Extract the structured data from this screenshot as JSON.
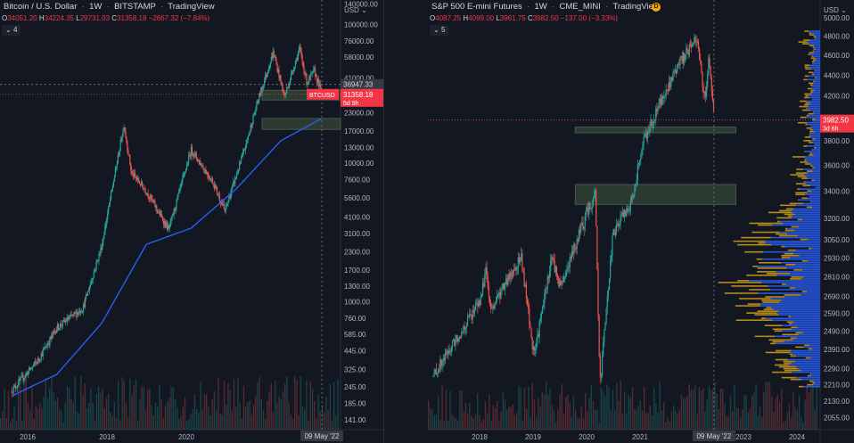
{
  "left_chart": {
    "title": "Bitcoin / U.S. Dollar",
    "interval": "1W",
    "exchange": "BITSTAMP",
    "source": "TradingView",
    "ohlc": {
      "o": "34051.20",
      "h": "34224.35",
      "l": "29731.03",
      "c": "31358.18",
      "chg": "−2667.32 (−7.84%)"
    },
    "indicator_count": "4",
    "currency": "USD",
    "price_tag": {
      "symbol": "BTCUSD",
      "price": "31358.18",
      "countdown": "5d 9h"
    },
    "crosshair_price": "36947.33",
    "crosshair_date": "09 May '22",
    "colors": {
      "up": "#26a69a",
      "down": "#ef5350",
      "ma": "#2962ff",
      "zone": "#4a5e48"
    },
    "log_scale": true
  },
  "right_chart": {
    "title": "S&P 500 E-mini Futures",
    "interval": "1W",
    "exchange": "CME_MINI",
    "source": "TradingView",
    "ohlc": {
      "o": "4087.25",
      "h": "4099.00",
      "l": "3961.75",
      "c": "3982.50",
      "chg": "−137.00 (−3.33%)"
    },
    "indicator_count": "5",
    "currency": "USD",
    "price_tag": {
      "price": "3982.50",
      "countdown": "3d 6h"
    },
    "crosshair_date": "09 May '22",
    "colors": {
      "up": "#26a69a",
      "down": "#ef5350",
      "vp_up": "#2962ff",
      "vp_down": "#d4a017",
      "zone": "#4a5e48"
    },
    "log_scale": true
  },
  "chart_data": [
    {
      "type": "candlestick",
      "title": "Bitcoin / U.S. Dollar",
      "x_ticks": [
        "2016",
        "2018",
        "2020"
      ],
      "y_ticks": [
        "140000.00",
        "100000.00",
        "76000.00",
        "58000.00",
        "41000.00",
        "23000.00",
        "17000.00",
        "13000.00",
        "10000.00",
        "7600.00",
        "5600.00",
        "4100.00",
        "3100.00",
        "2300.00",
        "1700.00",
        "1300.00",
        "1000.00",
        "760.00",
        "585.00",
        "445.00",
        "325.00",
        "245.00",
        "185.00",
        "141.00"
      ],
      "ylim": [
        120,
        140000
      ],
      "series": [
        {
          "name": "BTCUSD",
          "points": [
            [
              "2015-06",
              230
            ],
            [
              "2016-01",
              380
            ],
            [
              "2016-06",
              650
            ],
            [
              "2017-01",
              900
            ],
            [
              "2017-06",
              2500
            ],
            [
              "2017-12",
              19000
            ],
            [
              "2018-02",
              8500
            ],
            [
              "2018-06",
              6300
            ],
            [
              "2018-12",
              3300
            ],
            [
              "2019-06",
              12500
            ],
            [
              "2019-12",
              7200
            ],
            [
              "2020-03",
              4500
            ],
            [
              "2020-08",
              11800
            ],
            [
              "2020-12",
              29000
            ],
            [
              "2021-04",
              63000
            ],
            [
              "2021-07",
              30000
            ],
            [
              "2021-11",
              67000
            ],
            [
              "2022-01",
              38000
            ],
            [
              "2022-03",
              46000
            ],
            [
              "2022-05",
              31358
            ]
          ]
        },
        {
          "name": "moving average",
          "points": [
            [
              "2015-06",
              210
            ],
            [
              "2016-06",
              300
            ],
            [
              "2017-06",
              700
            ],
            [
              "2018-06",
              2600
            ],
            [
              "2019-06",
              3400
            ],
            [
              "2020-06",
              6500
            ],
            [
              "2021-06",
              14500
            ],
            [
              "2022-05",
              21000
            ]
          ]
        }
      ],
      "zones": [
        [
          28500,
          33500
        ],
        [
          17500,
          21000
        ]
      ]
    },
    {
      "type": "candlestick",
      "title": "S&P 500 E-mini Futures",
      "x_ticks": [
        "2018",
        "2019",
        "2020",
        "2021",
        "2023",
        "2024"
      ],
      "y_ticks": [
        "5000.00",
        "4800.00",
        "4600.00",
        "4400.00",
        "4200.00",
        "4000.00",
        "3800.00",
        "3600.00",
        "3400.00",
        "3200.00",
        "3050.00",
        "2930.00",
        "2810.00",
        "2690.00",
        "2590.00",
        "2490.00",
        "2390.00",
        "2290.00",
        "2210.00",
        "2130.00",
        "2055.00"
      ],
      "ylim": [
        2000,
        5200
      ],
      "series": [
        {
          "name": "ES1!",
          "points": [
            [
              "2017-01",
              2250
            ],
            [
              "2017-12",
              2680
            ],
            [
              "2018-01",
              2870
            ],
            [
              "2018-02",
              2600
            ],
            [
              "2018-09",
              2940
            ],
            [
              "2018-12",
              2350
            ],
            [
              "2019-04",
              2940
            ],
            [
              "2019-06",
              2750
            ],
            [
              "2019-12",
              3230
            ],
            [
              "2020-02",
              3390
            ],
            [
              "2020-03",
              2200
            ],
            [
              "2020-06",
              3100
            ],
            [
              "2020-10",
              3300
            ],
            [
              "2021-01",
              3800
            ],
            [
              "2021-06",
              4250
            ],
            [
              "2021-09",
              4500
            ],
            [
              "2022-01",
              4800
            ],
            [
              "2022-03",
              4150
            ],
            [
              "2022-03-28",
              4600
            ],
            [
              "2022-05",
              3982
            ]
          ]
        }
      ],
      "zones": [
        [
          3870,
          3920
        ],
        [
          3300,
          3450
        ]
      ]
    }
  ]
}
